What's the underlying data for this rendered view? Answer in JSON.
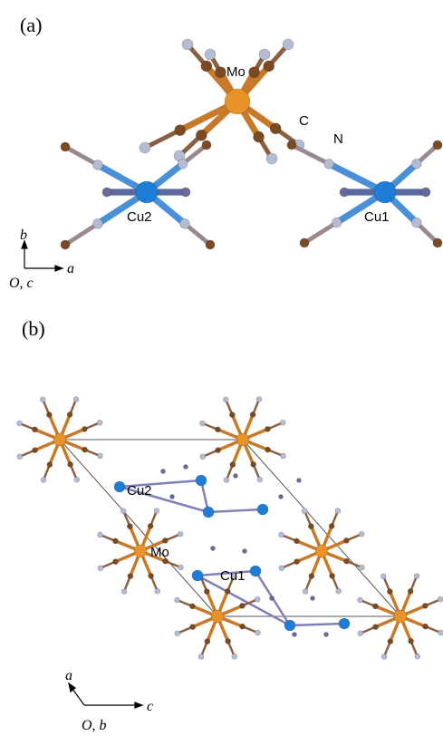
{
  "panels": [
    {
      "label": "(a)",
      "atom_labels": [
        "Mo",
        "C",
        "N",
        "Cu2",
        "Cu1"
      ],
      "axes": {
        "vertical": "b",
        "origin": "O, c",
        "horizontal": "a"
      }
    },
    {
      "label": "(b)",
      "atom_labels": [
        "Cu2",
        "Mo",
        "Cu1"
      ],
      "axes": {
        "vertical": "a",
        "origin": "O, b",
        "horizontal": "c"
      }
    }
  ]
}
